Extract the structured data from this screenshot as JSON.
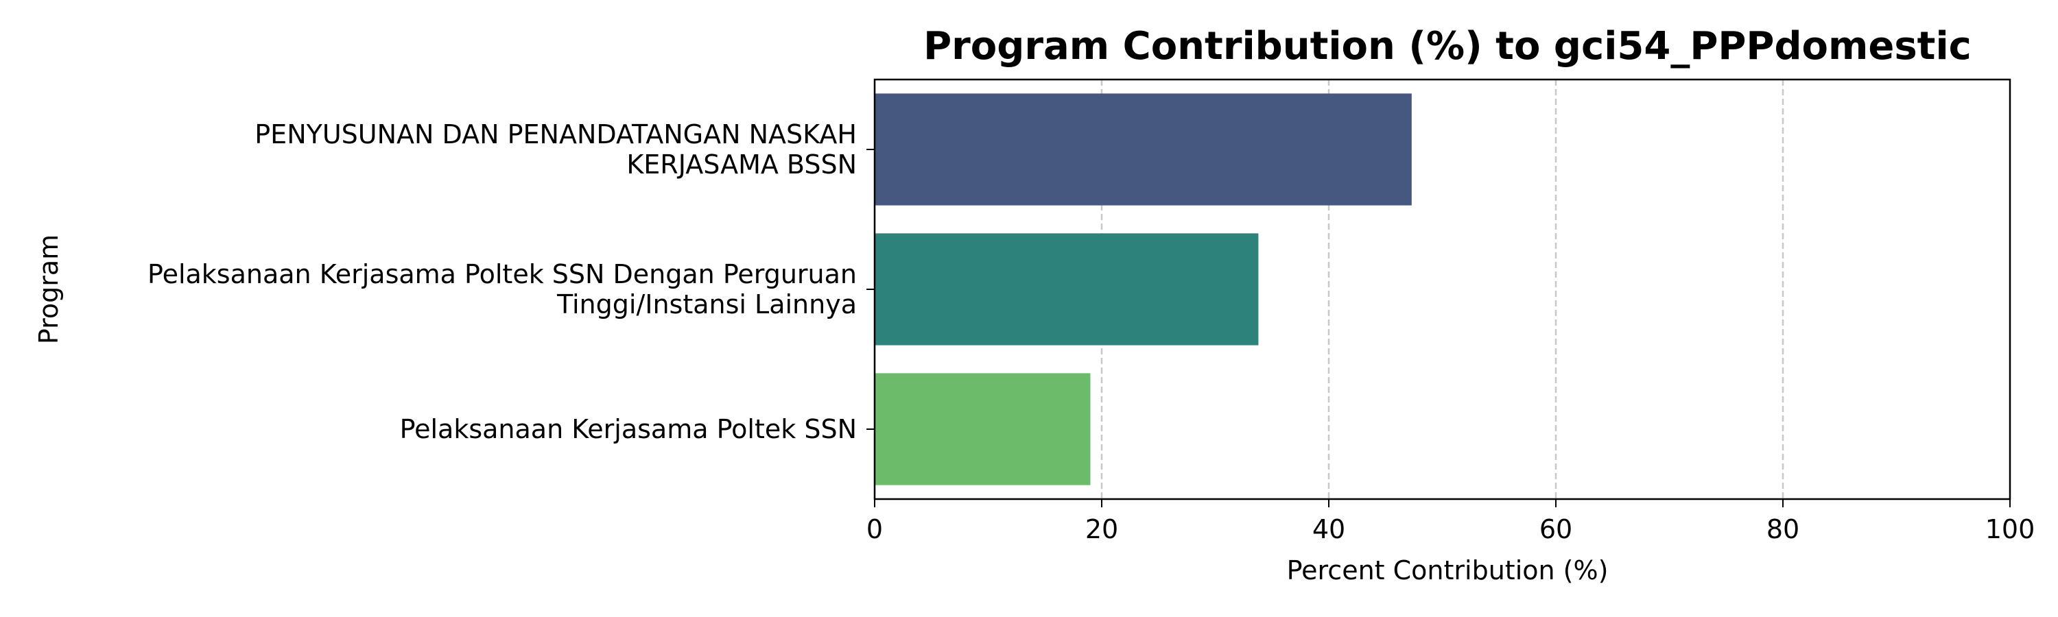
{
  "chart_data": {
    "type": "bar",
    "orientation": "horizontal",
    "title": "Program Contribution (%) to gci54_PPPdomestic",
    "xlabel": "Percent Contribution (%)",
    "ylabel": "Program",
    "xlim": [
      0,
      100
    ],
    "xticks": [
      0,
      20,
      40,
      60,
      80,
      100
    ],
    "xtick_labels": [
      "0",
      "20",
      "40",
      "60",
      "80",
      "100"
    ],
    "grid": "x-axis dashed",
    "categories": [
      [
        "PENYUSUNAN DAN PENANDATANGAN NASKAH",
        "KERJASAMA BSSN"
      ],
      [
        "Pelaksanaan Kerjasama Poltek SSN Dengan Perguruan",
        "Tinggi/Instansi Lainnya"
      ],
      [
        "Pelaksanaan Kerjasama Poltek SSN"
      ]
    ],
    "values": [
      47.3,
      33.8,
      19.0
    ],
    "colors": [
      "#46587f",
      "#2e827c",
      "#6bbb6b"
    ]
  }
}
